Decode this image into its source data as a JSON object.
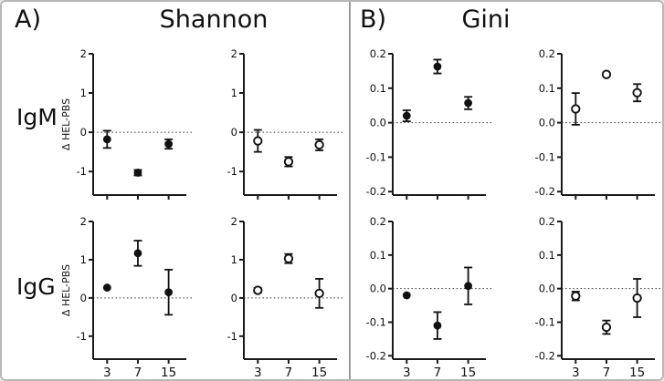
{
  "figure": {
    "panel_a_label": "A)",
    "panel_a_title": "Shannon",
    "panel_b_label": "B)",
    "panel_b_title": "Gini",
    "row_label_igm": "IgM",
    "row_label_igg": "IgG",
    "y_axis_label": "Δ HEL-PBS",
    "x_tick_labels": [
      "3",
      "7",
      "15"
    ],
    "colors": {
      "marker": "#111111",
      "axis": "#1a1a1a",
      "border": "#b8b8b8",
      "divider": "#9a9a9a"
    }
  },
  "chart_data": [
    {
      "type": "scatter",
      "panel": "Shannon",
      "row": "IgM",
      "marker_style": "filled",
      "x": [
        3,
        7,
        15
      ],
      "y": [
        -0.18,
        -1.03,
        -0.3
      ],
      "yerr": [
        0.22,
        0.07,
        0.12
      ],
      "ylim": [
        -1.6,
        2.0
      ],
      "yticks": [
        2,
        1,
        0,
        -1
      ],
      "ytick_labels": [
        "2",
        "1",
        "0",
        "-1"
      ],
      "zero_line": true,
      "show_x_tick_labels": false,
      "ylabel": "Δ HEL-PBS"
    },
    {
      "type": "scatter",
      "panel": "Shannon",
      "row": "IgM",
      "marker_style": "open",
      "x": [
        3,
        7,
        15
      ],
      "y": [
        -0.22,
        -0.75,
        -0.32
      ],
      "yerr": [
        0.28,
        0.12,
        0.14
      ],
      "ylim": [
        -1.6,
        2.0
      ],
      "yticks": [
        2,
        1,
        0,
        -1
      ],
      "ytick_labels": [
        "2",
        "1",
        "0",
        "-1"
      ],
      "zero_line": true,
      "show_x_tick_labels": false,
      "ylabel": ""
    },
    {
      "type": "scatter",
      "panel": "Gini",
      "row": "IgM",
      "marker_style": "filled",
      "x": [
        3,
        7,
        15
      ],
      "y": [
        0.02,
        0.163,
        0.057
      ],
      "yerr": [
        0.016,
        0.02,
        0.018
      ],
      "ylim": [
        -0.21,
        0.2
      ],
      "yticks": [
        0.2,
        0.1,
        0.0,
        -0.1,
        -0.2
      ],
      "ytick_labels": [
        "0.2",
        "0.1",
        "0.0",
        "-0.1",
        "-0.2"
      ],
      "zero_line": true,
      "show_x_tick_labels": false,
      "ylabel": ""
    },
    {
      "type": "scatter",
      "panel": "Gini",
      "row": "IgM",
      "marker_style": "open",
      "x": [
        3,
        7,
        15
      ],
      "y": [
        0.04,
        0.14,
        0.087
      ],
      "yerr": [
        0.046,
        0,
        0.025
      ],
      "ylim": [
        -0.21,
        0.2
      ],
      "yticks": [
        0.2,
        0.1,
        0.0,
        -0.1,
        -0.2
      ],
      "ytick_labels": [
        "0.2",
        "0.1",
        "0.0",
        "-0.1",
        "-0.2"
      ],
      "zero_line": true,
      "show_x_tick_labels": false,
      "ylabel": ""
    },
    {
      "type": "scatter",
      "panel": "Shannon",
      "row": "IgG",
      "marker_style": "filled",
      "x": [
        3,
        7,
        15
      ],
      "y": [
        0.27,
        1.17,
        0.15
      ],
      "yerr": [
        0,
        0.33,
        0.59
      ],
      "ylim": [
        -1.6,
        2.0
      ],
      "yticks": [
        2,
        1,
        0,
        -1
      ],
      "ytick_labels": [
        "2",
        "1",
        "0",
        "-1"
      ],
      "zero_line": true,
      "show_x_tick_labels": true,
      "ylabel": "Δ HEL-PBS"
    },
    {
      "type": "scatter",
      "panel": "Shannon",
      "row": "IgG",
      "marker_style": "open",
      "x": [
        3,
        7,
        15
      ],
      "y": [
        0.2,
        1.03,
        0.12
      ],
      "yerr": [
        0.06,
        0.12,
        0.38
      ],
      "ylim": [
        -1.6,
        2.0
      ],
      "yticks": [
        2,
        1,
        0,
        -1
      ],
      "ytick_labels": [
        "2",
        "1",
        "0",
        "-1"
      ],
      "zero_line": true,
      "show_x_tick_labels": true,
      "ylabel": ""
    },
    {
      "type": "scatter",
      "panel": "Gini",
      "row": "IgG",
      "marker_style": "filled",
      "x": [
        3,
        7,
        15
      ],
      "y": [
        -0.02,
        -0.11,
        0.008
      ],
      "yerr": [
        0,
        0.04,
        0.055
      ],
      "ylim": [
        -0.21,
        0.2
      ],
      "yticks": [
        0.2,
        0.1,
        0.0,
        -0.1,
        -0.2
      ],
      "ytick_labels": [
        "0.2",
        "0.1",
        "0.0",
        "-0.1",
        "-0.2"
      ],
      "zero_line": true,
      "show_x_tick_labels": true,
      "ylabel": ""
    },
    {
      "type": "scatter",
      "panel": "Gini",
      "row": "IgG",
      "marker_style": "open",
      "x": [
        3,
        7,
        15
      ],
      "y": [
        -0.022,
        -0.115,
        -0.028
      ],
      "yerr": [
        0.013,
        0.02,
        0.057
      ],
      "ylim": [
        -0.21,
        0.2
      ],
      "yticks": [
        0.2,
        0.1,
        0.0,
        -0.1,
        -0.2
      ],
      "ytick_labels": [
        "0.2",
        "0.1",
        "0.0",
        "-0.1",
        "-0.2"
      ],
      "zero_line": true,
      "show_x_tick_labels": true,
      "ylabel": ""
    }
  ]
}
